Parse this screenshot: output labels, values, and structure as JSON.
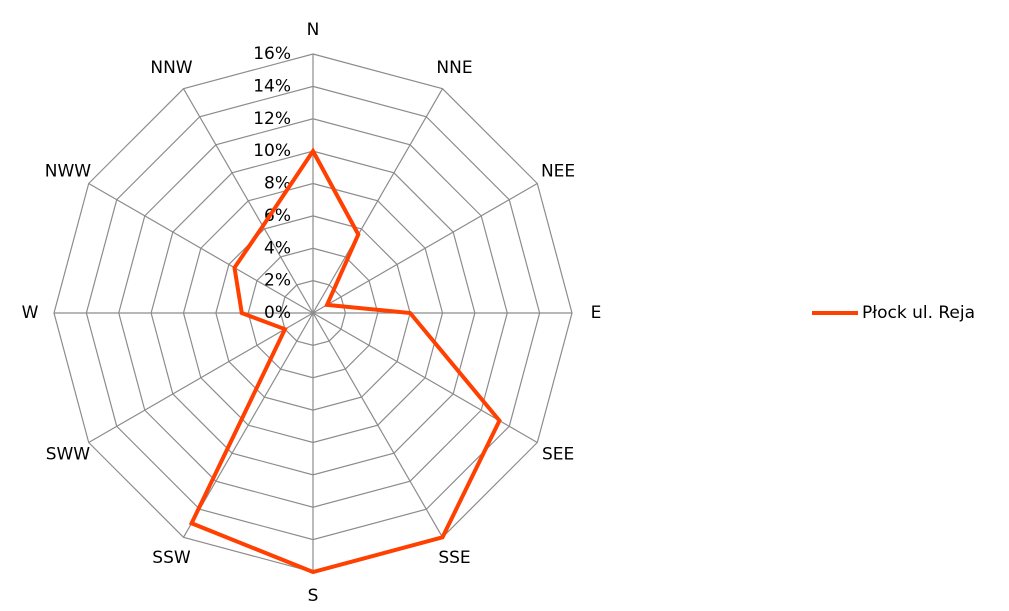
{
  "chart_data": {
    "type": "radar",
    "categories": [
      "N",
      "NNE",
      "NEE",
      "E",
      "SEE",
      "SSE",
      "S",
      "SSW",
      "SWW",
      "W",
      "NWW",
      "NNW"
    ],
    "series": [
      {
        "name": "Płock ul. Reja",
        "color": "#ff4000",
        "values": [
          10,
          5.6,
          1,
          6,
          13.3,
          16,
          16,
          15,
          2,
          4.4,
          5.6,
          6.2
        ]
      }
    ],
    "ylim": [
      0,
      16
    ],
    "yticks": [
      {
        "value": 0,
        "label": "0%"
      },
      {
        "value": 2,
        "label": "2%"
      },
      {
        "value": 4,
        "label": "4%"
      },
      {
        "value": 6,
        "label": "6%"
      },
      {
        "value": 8,
        "label": "8%"
      },
      {
        "value": 10,
        "label": "10%"
      },
      {
        "value": 12,
        "label": "12%"
      },
      {
        "value": 14,
        "label": "14%"
      },
      {
        "value": 16,
        "label": "16%"
      }
    ],
    "grid": true,
    "legend": "right"
  }
}
